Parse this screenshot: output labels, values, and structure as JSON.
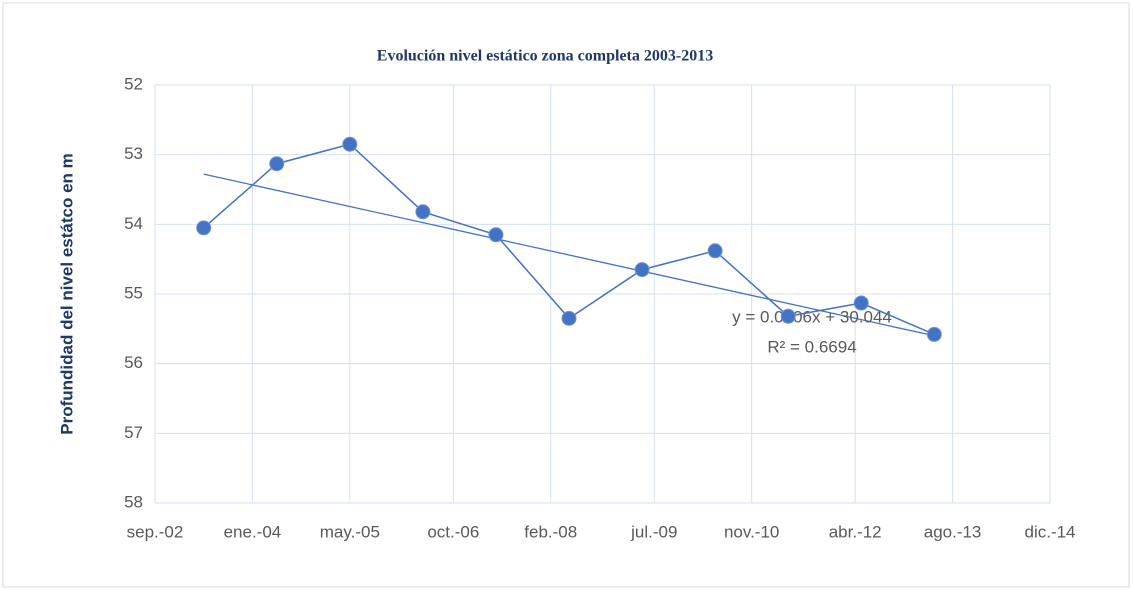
{
  "chart_data": {
    "type": "line",
    "title": "Evolución nivel estático zona completa 2003-2013",
    "y_label": "Profundidad del nivel estátco en m",
    "x": [
      "2003-05",
      "2004-05",
      "2005-05",
      "2006-05",
      "2007-05",
      "2008-05",
      "2009-05",
      "2010-05",
      "2011-05",
      "2012-05",
      "2013-05"
    ],
    "series": [
      {
        "color": "#4472c4",
        "values": [
          54.05,
          53.13,
          52.85,
          53.82,
          54.15,
          55.35,
          54.65,
          54.38,
          55.32,
          55.13,
          55.58
        ]
      }
    ],
    "trendline": {
      "color": "#4472c4",
      "x": [
        "2003-05",
        "2013-05"
      ],
      "values": [
        53.28,
        55.6
      ],
      "equation": "y = 0.0006x + 30.044",
      "r2": "R² = 0.6694"
    },
    "xlim": [
      "2002-09",
      "2014-12"
    ],
    "xticks": [
      {
        "value": "2002-09",
        "label": "sep.-02"
      },
      {
        "value": "2004-01",
        "label": "ene.-04"
      },
      {
        "value": "2005-05",
        "label": "may.-05"
      },
      {
        "value": "2006-10",
        "label": "oct.-06"
      },
      {
        "value": "2008-02",
        "label": "feb.-08"
      },
      {
        "value": "2009-07",
        "label": "jul.-09"
      },
      {
        "value": "2010-11",
        "label": "nov.-10"
      },
      {
        "value": "2012-04",
        "label": "abr.-12"
      },
      {
        "value": "2013-08",
        "label": "ago.-13"
      },
      {
        "value": "2014-12",
        "label": "dic.-14"
      }
    ],
    "ylim": [
      52,
      58
    ],
    "y_inverted": true,
    "yticks": [
      52,
      53,
      54,
      55,
      56,
      57,
      58
    ],
    "grid": true
  }
}
